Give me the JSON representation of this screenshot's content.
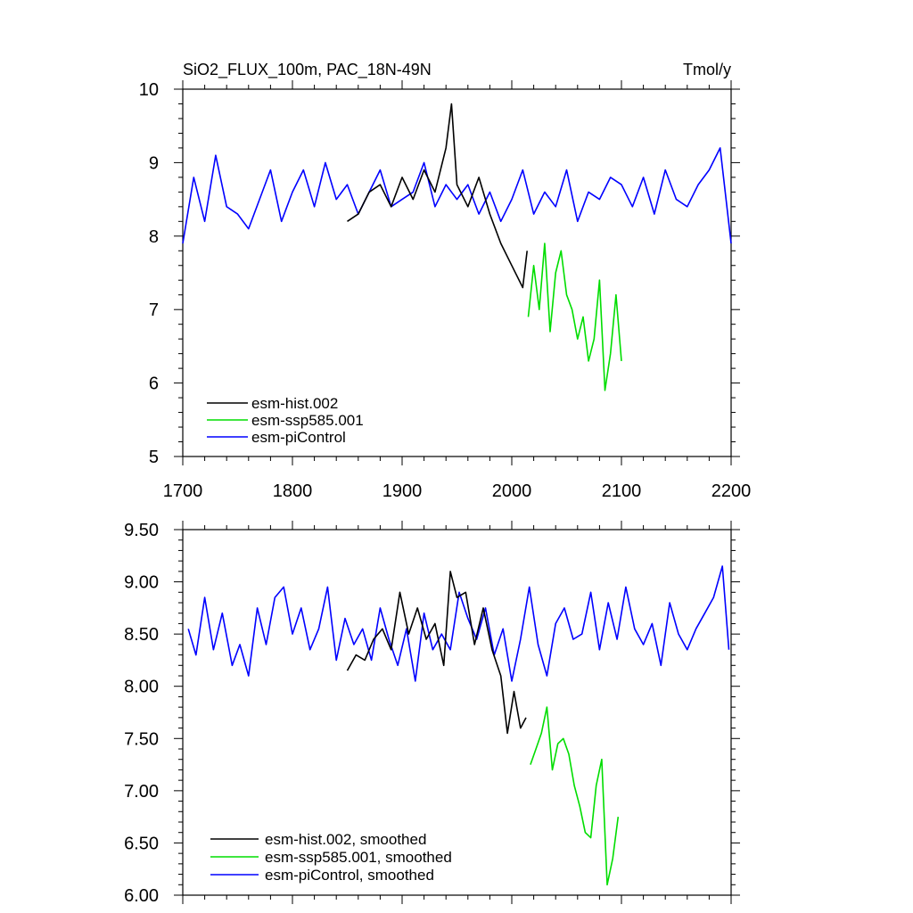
{
  "chart_data": [
    {
      "type": "line",
      "title_left": "SiO2_FLUX_100m, PAC_18N-49N",
      "title_right": "Tmol/y",
      "xlim": [
        1700,
        2200
      ],
      "ylim": [
        5,
        10
      ],
      "xticks": [
        1700,
        1800,
        1900,
        2000,
        2100,
        2200
      ],
      "xtick_labels": [
        "1700",
        "1800",
        "1900",
        "2000",
        "2100",
        "2200"
      ],
      "yticks": [
        5,
        6,
        7,
        8,
        9,
        10
      ],
      "ytick_labels": [
        "5",
        "6",
        "7",
        "8",
        "9",
        "10"
      ],
      "legend": [
        "esm-hist.002",
        "esm-ssp585.001",
        "esm-piControl"
      ],
      "series": [
        {
          "name": "esm-piControl",
          "color": "#0000ff",
          "x": [
            1700,
            1710,
            1720,
            1730,
            1740,
            1750,
            1760,
            1770,
            1780,
            1790,
            1800,
            1810,
            1820,
            1830,
            1840,
            1850,
            1860,
            1870,
            1880,
            1890,
            1900,
            1910,
            1920,
            1930,
            1940,
            1950,
            1960,
            1970,
            1980,
            1990,
            2000,
            2010,
            2020,
            2030,
            2040,
            2050,
            2060,
            2070,
            2080,
            2090,
            2100,
            2110,
            2120,
            2130,
            2140,
            2150,
            2160,
            2170,
            2180,
            2190,
            2200
          ],
          "values": [
            7.9,
            8.8,
            8.2,
            9.1,
            8.4,
            8.3,
            8.1,
            8.5,
            8.9,
            8.2,
            8.6,
            8.9,
            8.4,
            9.0,
            8.5,
            8.7,
            8.3,
            8.6,
            8.9,
            8.4,
            8.5,
            8.6,
            9.0,
            8.4,
            8.7,
            8.5,
            8.7,
            8.3,
            8.6,
            8.2,
            8.5,
            8.9,
            8.3,
            8.6,
            8.4,
            8.9,
            8.2,
            8.6,
            8.5,
            8.8,
            8.7,
            8.4,
            8.8,
            8.3,
            8.9,
            8.5,
            8.4,
            8.7,
            8.9,
            9.2,
            7.9
          ]
        },
        {
          "name": "esm-hist.002",
          "color": "#000000",
          "x": [
            1850,
            1860,
            1870,
            1880,
            1890,
            1900,
            1910,
            1920,
            1930,
            1940,
            1945,
            1950,
            1960,
            1970,
            1980,
            1990,
            2000,
            2010,
            2014
          ],
          "values": [
            8.2,
            8.3,
            8.6,
            8.7,
            8.4,
            8.8,
            8.5,
            8.9,
            8.6,
            9.2,
            9.8,
            8.7,
            8.4,
            8.8,
            8.3,
            7.9,
            7.6,
            7.3,
            7.8
          ]
        },
        {
          "name": "esm-ssp585.001",
          "color": "#00dd00",
          "x": [
            2015,
            2020,
            2025,
            2030,
            2035,
            2040,
            2045,
            2050,
            2055,
            2060,
            2065,
            2070,
            2075,
            2080,
            2085,
            2090,
            2095,
            2100
          ],
          "values": [
            6.9,
            7.6,
            7.0,
            7.9,
            6.7,
            7.5,
            7.8,
            7.2,
            7.0,
            6.6,
            6.9,
            6.3,
            6.6,
            7.4,
            5.9,
            6.4,
            7.2,
            6.3
          ]
        }
      ]
    },
    {
      "type": "line",
      "xlim": [
        1700,
        2200
      ],
      "ylim": [
        6.0,
        9.5
      ],
      "yticks": [
        6.0,
        6.5,
        7.0,
        7.5,
        8.0,
        8.5,
        9.0,
        9.5
      ],
      "ytick_labels": [
        "6.00",
        "6.50",
        "7.00",
        "7.50",
        "8.00",
        "8.50",
        "9.00",
        "9.50"
      ],
      "legend": [
        "esm-hist.002, smoothed",
        "esm-ssp585.001, smoothed",
        "esm-piControl, smoothed"
      ],
      "series": [
        {
          "name": "esm-piControl, smoothed",
          "color": "#0000ff",
          "x": [
            1705,
            1712,
            1720,
            1728,
            1736,
            1745,
            1752,
            1760,
            1768,
            1776,
            1784,
            1792,
            1800,
            1808,
            1816,
            1824,
            1832,
            1840,
            1848,
            1856,
            1864,
            1872,
            1880,
            1888,
            1896,
            1904,
            1912,
            1920,
            1928,
            1936,
            1944,
            1952,
            1960,
            1968,
            1976,
            1984,
            1992,
            2000,
            2008,
            2016,
            2024,
            2032,
            2040,
            2048,
            2056,
            2064,
            2072,
            2080,
            2088,
            2096,
            2104,
            2112,
            2120,
            2128,
            2136,
            2144,
            2152,
            2160,
            2168,
            2176,
            2184,
            2192,
            2198
          ],
          "values": [
            8.55,
            8.3,
            8.85,
            8.35,
            8.7,
            8.2,
            8.4,
            8.1,
            8.75,
            8.4,
            8.85,
            8.95,
            8.5,
            8.75,
            8.35,
            8.55,
            8.95,
            8.25,
            8.65,
            8.4,
            8.55,
            8.25,
            8.75,
            8.45,
            8.2,
            8.55,
            8.05,
            8.7,
            8.35,
            8.5,
            8.35,
            8.9,
            8.65,
            8.45,
            8.75,
            8.3,
            8.55,
            8.05,
            8.45,
            8.95,
            8.4,
            8.1,
            8.6,
            8.75,
            8.45,
            8.5,
            8.9,
            8.35,
            8.8,
            8.45,
            8.95,
            8.55,
            8.4,
            8.6,
            8.2,
            8.8,
            8.5,
            8.35,
            8.55,
            8.7,
            8.85,
            9.15,
            8.35
          ]
        },
        {
          "name": "esm-hist.002, smoothed",
          "color": "#000000",
          "x": [
            1850,
            1858,
            1866,
            1874,
            1882,
            1890,
            1898,
            1906,
            1914,
            1922,
            1930,
            1938,
            1944,
            1950,
            1958,
            1966,
            1974,
            1982,
            1990,
            1996,
            2002,
            2008,
            2013
          ],
          "values": [
            8.15,
            8.3,
            8.25,
            8.45,
            8.55,
            8.35,
            8.9,
            8.5,
            8.75,
            8.45,
            8.6,
            8.2,
            9.1,
            8.85,
            8.9,
            8.4,
            8.75,
            8.35,
            8.1,
            7.55,
            7.95,
            7.6,
            7.7
          ]
        },
        {
          "name": "esm-ssp585.001, smoothed",
          "color": "#00dd00",
          "x": [
            2017,
            2022,
            2027,
            2032,
            2037,
            2042,
            2047,
            2052,
            2057,
            2062,
            2067,
            2072,
            2077,
            2082,
            2087,
            2092,
            2097
          ],
          "values": [
            7.25,
            7.4,
            7.55,
            7.8,
            7.2,
            7.45,
            7.5,
            7.35,
            7.05,
            6.85,
            6.6,
            6.55,
            7.05,
            7.3,
            6.1,
            6.35,
            6.75
          ]
        }
      ]
    }
  ]
}
